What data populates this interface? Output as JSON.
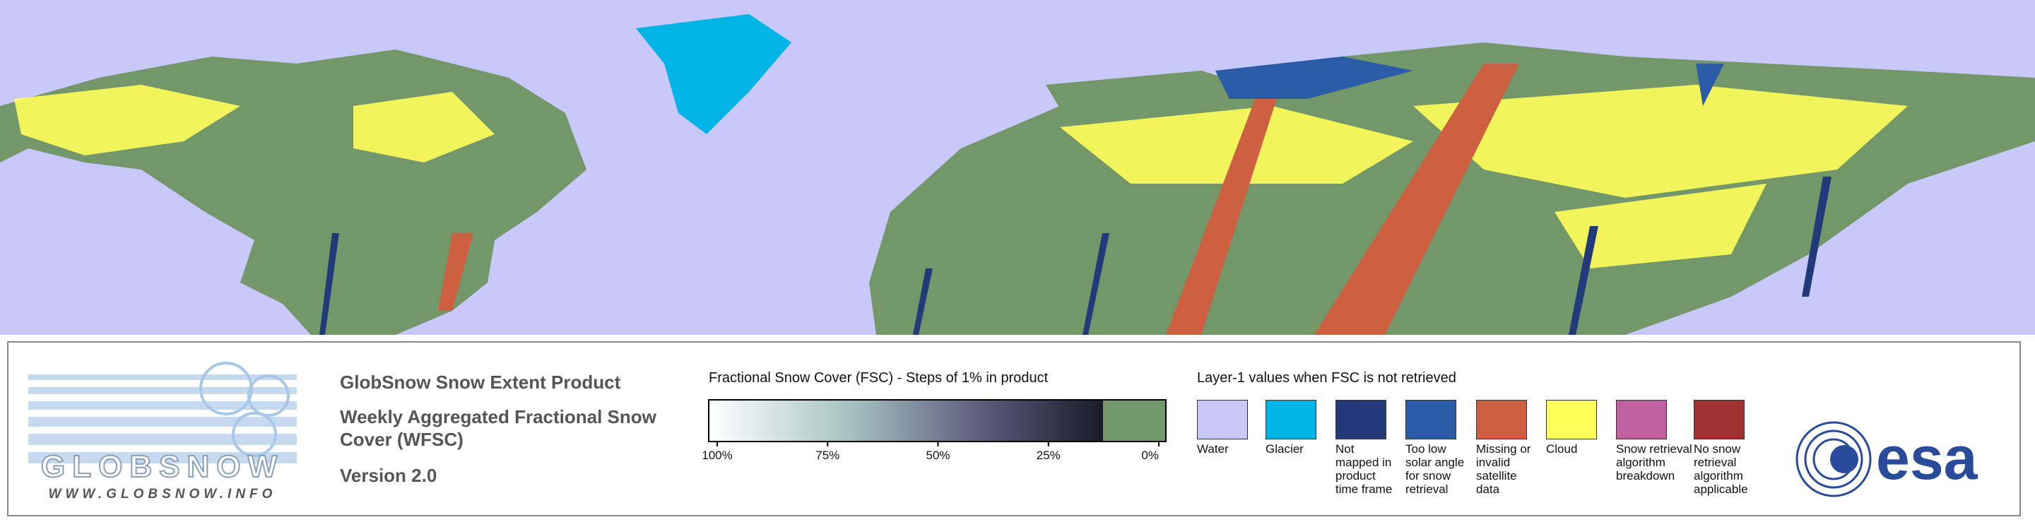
{
  "logo": {
    "name": "GLOBSNOW",
    "url": "WWW.GLOBSNOW.INFO"
  },
  "product": {
    "title": "GlobSnow Snow Extent Product",
    "subtitle": "Weekly Aggregated Fractional Snow Cover (WFSC)",
    "version": "Version 2.0"
  },
  "fsc_scale": {
    "title": "Fractional Snow Cover (FSC) - Steps of 1% in product",
    "ticks": [
      {
        "value": 100,
        "label": "100%"
      },
      {
        "value": 75,
        "label": "75%"
      },
      {
        "value": 50,
        "label": "50%"
      },
      {
        "value": 25,
        "label": "25%"
      },
      {
        "value": 0,
        "label": "0%"
      }
    ]
  },
  "layer1": {
    "title": "Layer-1 values when FSC is not retrieved",
    "classes": [
      {
        "label": "Water",
        "color": "#c8c8fa"
      },
      {
        "label": "Glacier",
        "color": "#00b4e6"
      },
      {
        "label": "Not mapped in product time frame",
        "color": "#233a7a"
      },
      {
        "label": "Too low solar angle for snow retrieval",
        "color": "#2a5ca8"
      },
      {
        "label": "Missing or invalid satellite data",
        "color": "#cd6040"
      },
      {
        "label": "Cloud",
        "color": "#ffff5a"
      },
      {
        "label": "Snow retrieval algorithm breakdown",
        "color": "#c060a0"
      },
      {
        "label": "No snow retrieval algorithm applicable",
        "color": "#a03030"
      }
    ]
  },
  "agency": "esa"
}
